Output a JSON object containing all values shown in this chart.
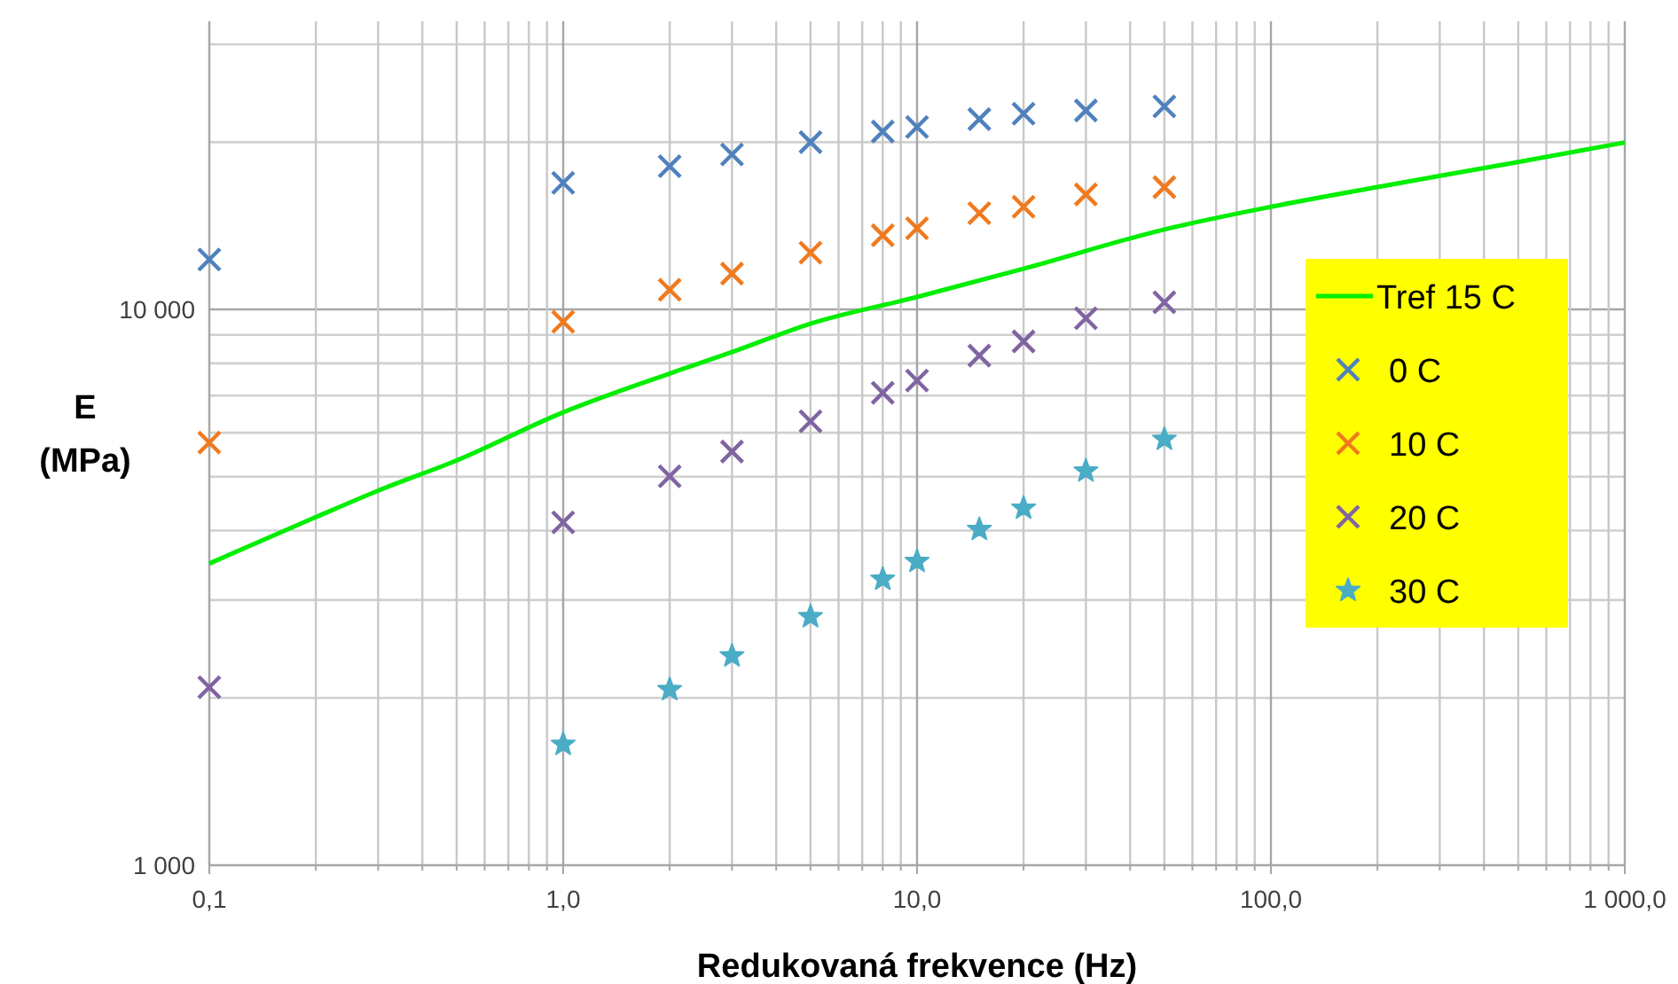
{
  "chart_data": {
    "type": "scatter",
    "xlabel": "Redukovaná frekvence (Hz)",
    "ylabel": "E\n(MPa)",
    "log": "xy",
    "grid": true,
    "legend": "right",
    "xlim": [
      0.1,
      1000
    ],
    "ylim": [
      1000,
      33000
    ],
    "xticks": [
      {
        "value": 0.1,
        "label": "0,1"
      },
      {
        "value": 0.2,
        "label": null
      },
      {
        "value": 0.3,
        "label": null
      },
      {
        "value": 0.4,
        "label": null
      },
      {
        "value": 0.5,
        "label": null
      },
      {
        "value": 0.6,
        "label": null
      },
      {
        "value": 0.7,
        "label": null
      },
      {
        "value": 0.8,
        "label": null
      },
      {
        "value": 0.9,
        "label": null
      },
      {
        "value": 1,
        "label": "1,0"
      },
      {
        "value": 2,
        "label": null
      },
      {
        "value": 3,
        "label": null
      },
      {
        "value": 4,
        "label": null
      },
      {
        "value": 5,
        "label": null
      },
      {
        "value": 6,
        "label": null
      },
      {
        "value": 7,
        "label": null
      },
      {
        "value": 8,
        "label": null
      },
      {
        "value": 9,
        "label": null
      },
      {
        "value": 10,
        "label": "10,0"
      },
      {
        "value": 20,
        "label": null
      },
      {
        "value": 30,
        "label": null
      },
      {
        "value": 40,
        "label": null
      },
      {
        "value": 50,
        "label": null
      },
      {
        "value": 60,
        "label": null
      },
      {
        "value": 70,
        "label": null
      },
      {
        "value": 80,
        "label": null
      },
      {
        "value": 90,
        "label": null
      },
      {
        "value": 100,
        "label": "100,0"
      },
      {
        "value": 200,
        "label": null
      },
      {
        "value": 300,
        "label": null
      },
      {
        "value": 400,
        "label": null
      },
      {
        "value": 500,
        "label": null
      },
      {
        "value": 600,
        "label": null
      },
      {
        "value": 700,
        "label": null
      },
      {
        "value": 800,
        "label": null
      },
      {
        "value": 900,
        "label": null
      },
      {
        "value": 1000,
        "label": "1 000,0"
      }
    ],
    "yticks": [
      {
        "value": 1000,
        "label": "1 000"
      },
      {
        "value": 2000,
        "label": null
      },
      {
        "value": 3000,
        "label": null
      },
      {
        "value": 4000,
        "label": null
      },
      {
        "value": 5000,
        "label": null
      },
      {
        "value": 6000,
        "label": null
      },
      {
        "value": 7000,
        "label": null
      },
      {
        "value": 8000,
        "label": null
      },
      {
        "value": 9000,
        "label": null
      },
      {
        "value": 10000,
        "label": "10 000"
      },
      {
        "value": 20000,
        "label": null
      },
      {
        "value": 30000,
        "label": null
      }
    ],
    "series": [
      {
        "name": "Tref 15 C",
        "type": "line",
        "color": "#00ee00",
        "x": [
          0.1,
          0.2,
          0.3,
          0.5,
          1,
          2,
          3,
          5,
          10,
          20,
          50,
          100,
          200,
          500,
          1000
        ],
        "values": [
          3490,
          4230,
          4720,
          5350,
          6530,
          7670,
          8380,
          9430,
          10530,
          11840,
          13930,
          15300,
          16610,
          18420,
          19970
        ]
      },
      {
        "name": "0 C",
        "color": "#4f81bd",
        "marker": "cross",
        "x": [
          0.1,
          1,
          2,
          3,
          5,
          8,
          10,
          15,
          20,
          30,
          50
        ],
        "values": [
          12300,
          16900,
          18100,
          19000,
          20000,
          20900,
          21300,
          22000,
          22500,
          22800,
          23200
        ]
      },
      {
        "name": "10 C",
        "color": "#f07a1e",
        "marker": "cross",
        "x": [
          0.1,
          1,
          2,
          3,
          5,
          8,
          10,
          15,
          20,
          30,
          50
        ],
        "values": [
          5760,
          9500,
          10850,
          11600,
          12650,
          13600,
          14000,
          14900,
          15300,
          16100,
          16600
        ]
      },
      {
        "name": "20 C",
        "color": "#8064a2",
        "marker": "cross",
        "x": [
          0.1,
          1,
          2,
          3,
          5,
          8,
          10,
          15,
          20,
          30,
          50
        ],
        "values": [
          2090,
          4140,
          5010,
          5550,
          6290,
          7080,
          7450,
          8260,
          8760,
          9640,
          10300
        ]
      },
      {
        "name": "30 C",
        "color": "#4bacc6",
        "marker": "star",
        "x": [
          1,
          2,
          3,
          5,
          8,
          10,
          15,
          20,
          30,
          50
        ],
        "values": [
          1650,
          2070,
          2380,
          2800,
          3270,
          3520,
          4020,
          4390,
          5120,
          5840
        ]
      }
    ]
  }
}
